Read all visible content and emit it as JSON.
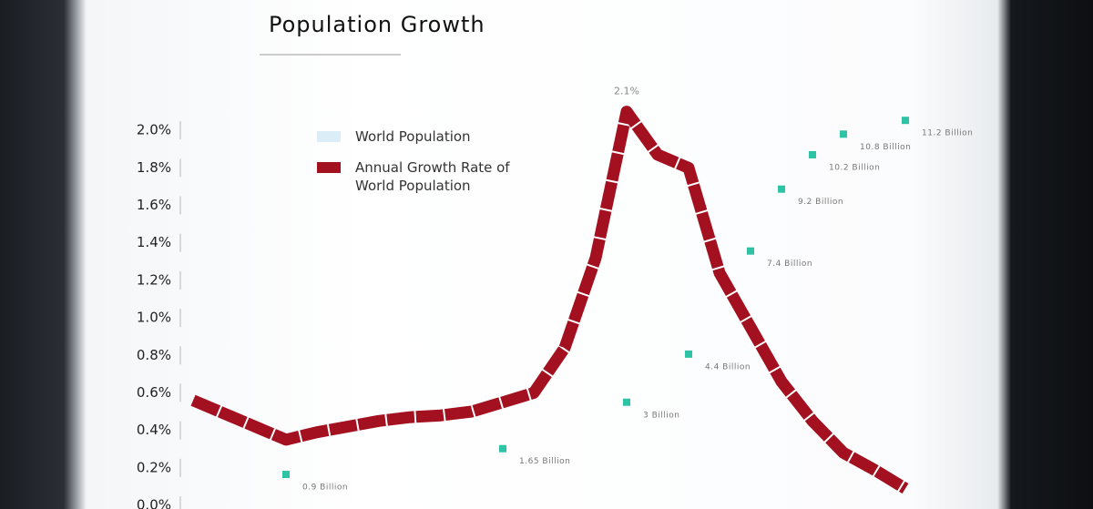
{
  "chart_data": {
    "type": "line",
    "title": "Population Growth",
    "categories": [
      null,
      null,
      null,
      null,
      null,
      null,
      null,
      null,
      null,
      null,
      null,
      null,
      null,
      null,
      null,
      null,
      null,
      null,
      null,
      null,
      null,
      null,
      null,
      null
    ],
    "ylim": [
      0,
      2.2
    ],
    "yticks": [
      {
        "value": 0,
        "label": "0.0%"
      },
      {
        "value": 0.2,
        "label": "0.2%"
      },
      {
        "value": 0.4,
        "label": "0.4%"
      },
      {
        "value": 0.6,
        "label": "0.6%"
      },
      {
        "value": 0.8,
        "label": "0.8%"
      },
      {
        "value": 1,
        "label": "1.0%"
      },
      {
        "value": 1.2,
        "label": "1.2%"
      },
      {
        "value": 1.4,
        "label": "1.4%"
      },
      {
        "value": 1.6,
        "label": "1.6%"
      },
      {
        "value": 1.8,
        "label": "1.8%"
      },
      {
        "value": 2,
        "label": "2.0%"
      }
    ],
    "y2lim": [
      0,
      12
    ],
    "series": [
      {
        "name": "World Population",
        "color": "#dbeef8",
        "marker_color": "#2fc3a6",
        "axis": "y2",
        "values": [
          null,
          null,
          null,
          0.9,
          null,
          null,
          null,
          null,
          null,
          null,
          1.65,
          null,
          null,
          null,
          3,
          null,
          4.4,
          null,
          7.4,
          9.2,
          10.2,
          10.8,
          null,
          11.2
        ],
        "value_labels": [
          null,
          null,
          null,
          "0.9 Billion",
          null,
          null,
          null,
          null,
          null,
          null,
          "1.65 Billion",
          null,
          null,
          null,
          "3 Billion",
          null,
          "4.4 Billion",
          null,
          "7.4 Billion",
          "9.2 Billion",
          "10.2 Billion",
          "10.8 Billion",
          null,
          "11.2 Billion"
        ]
      },
      {
        "name": "Annual Growth Rate of World Population",
        "color": "#a3101f",
        "values": [
          0.56,
          0.49,
          0.42,
          0.35,
          0.39,
          0.42,
          0.45,
          0.47,
          0.48,
          0.5,
          0.55,
          0.6,
          0.84,
          1.32,
          2.1,
          1.87,
          1.8,
          1.24,
          0.95,
          0.66,
          0.45,
          0.28,
          0.19,
          0.09
        ],
        "value_labels": [
          null,
          null,
          null,
          null,
          null,
          null,
          null,
          null,
          null,
          null,
          null,
          null,
          null,
          null,
          "2.1%",
          null,
          null,
          null,
          null,
          null,
          null,
          null,
          null,
          null
        ]
      }
    ]
  }
}
